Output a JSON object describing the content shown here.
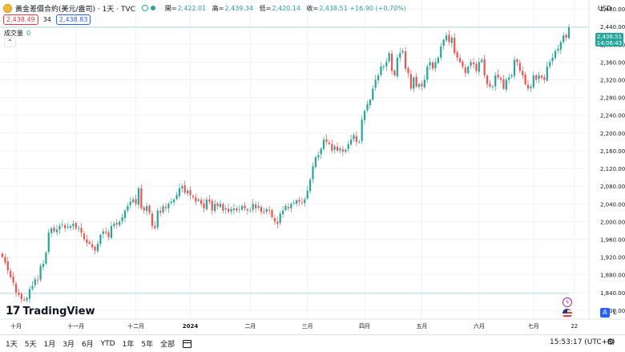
{
  "header": {
    "symbol": "黃金差價合約(美元/盎司) · 1天 · TVC",
    "ohlc": [
      {
        "label": "開=",
        "value": "2,422.01"
      },
      {
        "label": "高=",
        "value": "2,439.34"
      },
      {
        "label": "低=",
        "value": "2,420.14"
      },
      {
        "label": "收=",
        "value": "2,438.51 +16.90 (+0.70%)"
      }
    ],
    "sell_price": "2,438.49",
    "spread": "34",
    "buy_price": "2,438.83",
    "volume_label": "成交量",
    "volume_value": "0",
    "collapse_icon": "⌃"
  },
  "price_axis": {
    "currency": "USD",
    "last_price": "2,438.51",
    "countdown": "14:06:43",
    "scale_auto": "A",
    "scale_log": "L"
  },
  "brand": {
    "mark": "17",
    "name": "TradingView"
  },
  "events": {
    "bolt_icon": "ϟ"
  },
  "bottom": {
    "ranges": [
      "1天",
      "5天",
      "1月",
      "3月",
      "6月",
      "YTD",
      "1年",
      "5年",
      "全部"
    ],
    "clock": "15:53:17 (UTC+8)",
    "settings_icon": "⚙"
  },
  "colors": {
    "up": "#26a69a",
    "down": "#ef5350",
    "grid": "#f0f3fa",
    "line": "#b2dfdb"
  },
  "chart_data": {
    "type": "candlestick",
    "title": "黃金差價合約(美元/盎司) · 1天 · TVC",
    "ylim": [
      1780,
      2500
    ],
    "y_ticks": [
      1800,
      1840,
      1880,
      1920,
      1960,
      2000,
      2040,
      2080,
      2120,
      2160,
      2200,
      2240,
      2280,
      2320,
      2360,
      2400,
      2440,
      2480
    ],
    "y_tick_labels": [
      "1,800.00",
      "1,840.00",
      "1,880.00",
      "1,920.00",
      "1,960.00",
      "2,000.00",
      "2,040.00",
      "2,080.00",
      "2,120.00",
      "2,160.00",
      "2,200.00",
      "2,240.00",
      "2,280.00",
      "2,320.00",
      "2,360.00",
      "2,400.00",
      "2,440.00",
      "2,480.00"
    ],
    "x_ticks": [
      {
        "label": "十月",
        "index": 5
      },
      {
        "label": "十一月",
        "index": 27
      },
      {
        "label": "十二月",
        "index": 49
      },
      {
        "label": "2024",
        "index": 69
      },
      {
        "label": "二月",
        "index": 91
      },
      {
        "label": "三月",
        "index": 112
      },
      {
        "label": "四月",
        "index": 133
      },
      {
        "label": "五月",
        "index": 154
      },
      {
        "label": "六月",
        "index": 175
      },
      {
        "label": "七月",
        "index": 195
      },
      {
        "label": "22",
        "index": 210
      }
    ],
    "horizontal_lines": [
      2438.51,
      1838
    ],
    "close": [
      1920,
      1908,
      1890,
      1875,
      1862,
      1840,
      1835,
      1825,
      1822,
      1828,
      1848,
      1855,
      1870,
      1868,
      1900,
      1905,
      1930,
      1975,
      1985,
      1978,
      1982,
      1990,
      1993,
      1985,
      1988,
      1990,
      1995,
      1985,
      1985,
      1975,
      1960,
      1952,
      1950,
      1942,
      1935,
      1950,
      1970,
      1978,
      1975,
      1965,
      1990,
      1995,
      1993,
      2000,
      2010,
      2025,
      2035,
      2045,
      2050,
      2040,
      2075,
      2030,
      2025,
      2035,
      2020,
      1990,
      1985,
      2025,
      2020,
      2035,
      2030,
      2040,
      2045,
      2050,
      2060,
      2075,
      2080,
      2065,
      2070,
      2060,
      2055,
      2045,
      2050,
      2040,
      2030,
      2050,
      2045,
      2025,
      2040,
      2035,
      2040,
      2025,
      2030,
      2022,
      2028,
      2030,
      2025,
      2028,
      2035,
      2030,
      2025,
      2025,
      2040,
      2030,
      2035,
      2022,
      2020,
      2028,
      2025,
      2010,
      2000,
      1995,
      2018,
      2025,
      2035,
      2030,
      2040,
      2042,
      2048,
      2045,
      2042,
      2050,
      2070,
      2095,
      2125,
      2145,
      2150,
      2165,
      2185,
      2180,
      2175,
      2160,
      2170,
      2160,
      2165,
      2158,
      2162,
      2175,
      2185,
      2195,
      2180,
      2180,
      2230,
      2250,
      2265,
      2275,
      2300,
      2320,
      2330,
      2350,
      2350,
      2360,
      2380,
      2340,
      2330,
      2370,
      2380,
      2385,
      2345,
      2335,
      2300,
      2325,
      2305,
      2310,
      2305,
      2320,
      2350,
      2360,
      2345,
      2360,
      2370,
      2395,
      2410,
      2420,
      2405,
      2415,
      2380,
      2370,
      2360,
      2350,
      2335,
      2350,
      2360,
      2355,
      2340,
      2360,
      2365,
      2330,
      2310,
      2305,
      2305,
      2330,
      2325,
      2320,
      2300,
      2320,
      2325,
      2330,
      2365,
      2360,
      2340,
      2330,
      2310,
      2300,
      2305,
      2330,
      2320,
      2330,
      2325,
      2320,
      2350,
      2360,
      2370,
      2385,
      2390,
      2405,
      2420,
      2415,
      2438.51
    ]
  }
}
